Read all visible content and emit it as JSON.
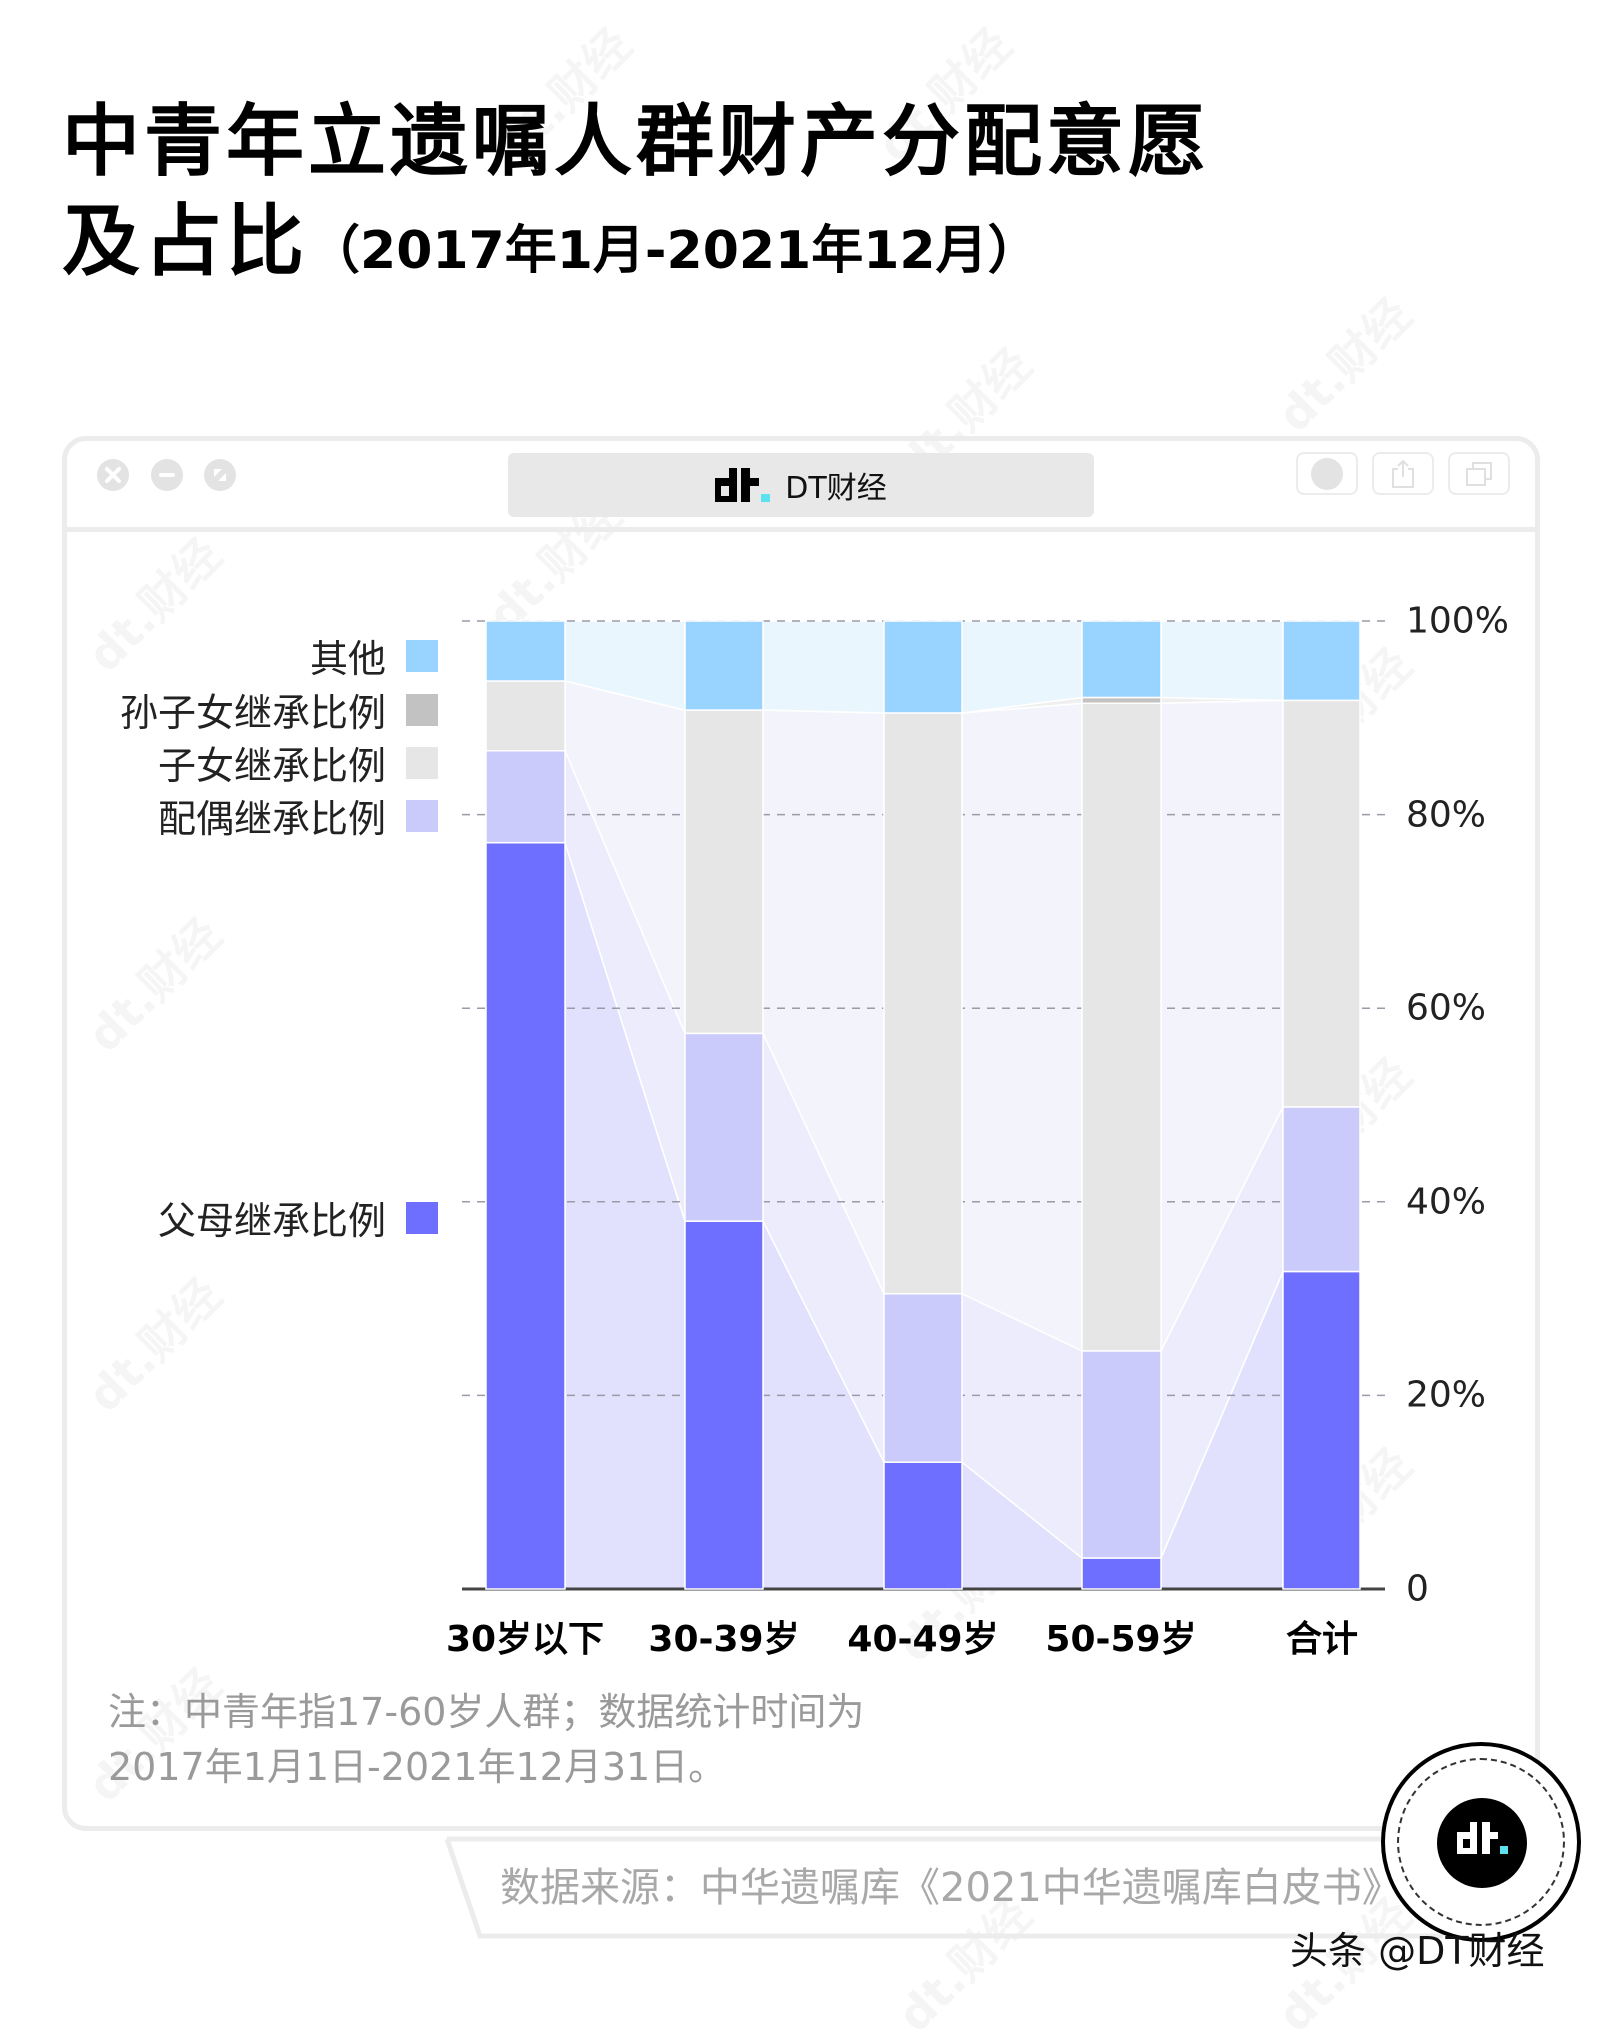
{
  "header": {
    "title_line1": "中青年立遗嘱人群财产分配意愿",
    "title_line2": "及占比",
    "title_period": "（2017年1月-2021年12月）"
  },
  "window": {
    "address_label": "DT财经",
    "brand_colors": {
      "logo_dark": "#000000",
      "logo_accent": "#5ce1f0"
    }
  },
  "legend": [
    {
      "label": "其他",
      "color": "#99d3ff"
    },
    {
      "label": "孙子女继承比例",
      "color": "#c2c2c2"
    },
    {
      "label": "子女继承比例",
      "color": "#e6e6e6"
    },
    {
      "label": "配偶继承比例",
      "color": "#cbcbfb"
    },
    {
      "label": "父母继承比例",
      "color": "#6e6ffe"
    }
  ],
  "axis": {
    "y_ticks": [
      "100%",
      "80%",
      "60%",
      "40%",
      "20%",
      "0"
    ]
  },
  "chart_data": {
    "type": "bar",
    "stacked": true,
    "normalized": true,
    "title": "中青年立遗嘱人群财产分配意愿及占比（2017年1月-2021年12月）",
    "xlabel": "",
    "ylabel": "",
    "ylim": [
      0,
      100
    ],
    "y_ticks": [
      "0",
      "20%",
      "40%",
      "60%",
      "80%",
      "100%"
    ],
    "y_axis_position": "right",
    "grid": "dashed horizontal",
    "legend_position": "left",
    "categories": [
      "30岁以下",
      "30-39岁",
      "40-49岁",
      "50-59岁",
      "合计"
    ],
    "series": [
      {
        "name": "父母继承比例",
        "color": "#6e6ffe",
        "values": [
          77.1,
          38.0,
          13.1,
          3.2,
          32.8
        ]
      },
      {
        "name": "配偶继承比例",
        "color": "#cbcbfb",
        "values": [
          9.5,
          19.4,
          17.4,
          21.4,
          17.0
        ]
      },
      {
        "name": "子女继承比例",
        "color": "#e6e6e6",
        "values": [
          7.2,
          33.4,
          60.0,
          66.9,
          42.0
        ]
      },
      {
        "name": "孙子女继承比例",
        "color": "#c2c2c2",
        "values": [
          0.0,
          0.0,
          0.0,
          0.6,
          0.0
        ]
      },
      {
        "name": "其他",
        "color": "#99d3ff",
        "values": [
          6.2,
          9.2,
          9.5,
          7.9,
          8.2
        ]
      }
    ]
  },
  "note": {
    "line1": "注：中青年指17-60岁人群；数据统计时间为",
    "line2": "2017年1月1日-2021年12月31日。"
  },
  "footer": {
    "source": "数据来源：中华遗嘱库《2021中华遗嘱库白皮书》",
    "credit": "头条 @DT财经"
  },
  "watermark": "dt.财经"
}
